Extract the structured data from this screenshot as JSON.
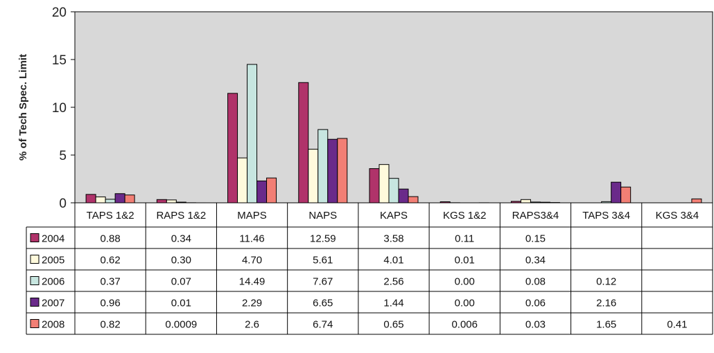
{
  "chart_data": {
    "type": "bar",
    "ylabel": "% of Tech Spec. Limit",
    "ylim": [
      0,
      20
    ],
    "yticks": [
      "0",
      "5",
      "10",
      "15",
      "20"
    ],
    "grid": false,
    "legend": "data table below chart",
    "categories": [
      "TAPS 1&2",
      "RAPS 1&2",
      "MAPS",
      "NAPS",
      "KAPS",
      "KGS 1&2",
      "RAPS3&4",
      "TAPS 3&4",
      "KGS 3&4"
    ],
    "series": [
      {
        "name": "2004",
        "color": "#B0336A",
        "values": [
          0.88,
          0.34,
          11.46,
          12.59,
          3.58,
          0.11,
          0.15,
          null,
          null
        ],
        "labels": [
          "0.88",
          "0.34",
          "11.46",
          "12.59",
          "3.58",
          "0.11",
          "0.15",
          "",
          ""
        ]
      },
      {
        "name": "2005",
        "color": "#FFFADC",
        "values": [
          0.62,
          0.3,
          4.7,
          5.61,
          4.01,
          0.01,
          0.34,
          null,
          null
        ],
        "labels": [
          "0.62",
          "0.30",
          "4.70",
          "5.61",
          "4.01",
          "0.01",
          "0.34",
          "",
          ""
        ]
      },
      {
        "name": "2006",
        "color": "#C7E6E0",
        "values": [
          0.37,
          0.07,
          14.49,
          7.67,
          2.56,
          0.0,
          0.08,
          0.12,
          null
        ],
        "labels": [
          "0.37",
          "0.07",
          "14.49",
          "7.67",
          "2.56",
          "0.00",
          "0.08",
          "0.12",
          ""
        ]
      },
      {
        "name": "2007",
        "color": "#6A2A8A",
        "values": [
          0.96,
          0.01,
          2.29,
          6.65,
          1.44,
          0.0,
          0.06,
          2.16,
          null
        ],
        "labels": [
          "0.96",
          "0.01",
          "2.29",
          "6.65",
          "1.44",
          "0.00",
          "0.06",
          "2.16",
          ""
        ]
      },
      {
        "name": "2008",
        "color": "#F27F75",
        "values": [
          0.82,
          0.0009,
          2.6,
          6.74,
          0.65,
          0.006,
          0.03,
          1.65,
          0.41
        ],
        "labels": [
          "0.82",
          "0.0009",
          "2.6",
          "6.74",
          "0.65",
          "0.006",
          "0.03",
          "1.65",
          "0.41"
        ]
      }
    ]
  },
  "colors": {
    "plot_background": "#D8D8D8",
    "border": "#000000"
  }
}
